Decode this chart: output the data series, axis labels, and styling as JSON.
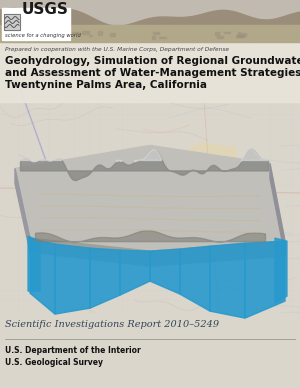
{
  "map_bg_color": "#dbd6cc",
  "topo_line_pink": "#d4b8b8",
  "topo_line_blue": "#b8c8d4",
  "topo_line_green": "#c8d4c0",
  "photo_sky_color": "#c8c0b0",
  "photo_hill_color": "#9a8e7a",
  "photo_ground_color": "#b0a888",
  "photo_town_color": "#b8b0a0",
  "logo_bg": "#ffffff",
  "header_band_color": "#e8e4da",
  "prepared_text": "Prepared in cooperation with the U.S. Marine Corps, Department of Defense",
  "title_line1": "Geohydrology, Simulation of Regional Groundwater Flow,",
  "title_line2": "and Assessment of Water-Management Strategies,",
  "title_line3": "Twentynine Palms Area, California",
  "block_top_color": "#b8b8b0",
  "block_front_color": "#a8a8a0",
  "block_side_color": "#989890",
  "block_edge_color": "#888880",
  "blue_aquifer": "#2899cc",
  "blue_aquifer_dark": "#1a6e99",
  "terrain_dark": "#606058",
  "terrain_light": "#d8d8d0",
  "report_label": "Scientific Investigations Report 2010–5249",
  "footer_line1": "U.S. Department of the Interior",
  "footer_line2": "U.S. Geological Survey",
  "bottom_bg": "#dbd6cc",
  "yellow_zone_color": "#e8d898",
  "purple_line_color": "#8888cc"
}
